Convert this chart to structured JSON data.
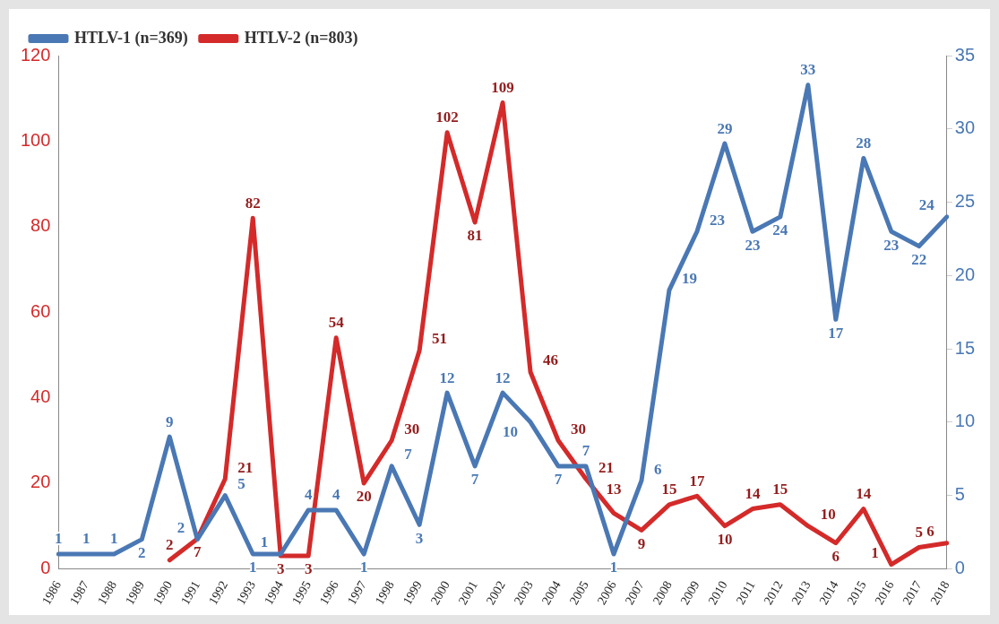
{
  "chart_data": {
    "type": "line",
    "categories": [
      "1986",
      "1987",
      "1988",
      "1989",
      "1990",
      "1991",
      "1992",
      "1993",
      "1994",
      "1995",
      "1996",
      "1997",
      "1998",
      "1999",
      "2000",
      "2001",
      "2002",
      "2003",
      "2004",
      "2005",
      "2006",
      "2007",
      "2008",
      "2009",
      "2010",
      "2011",
      "2012",
      "2013",
      "2014",
      "2015",
      "2016",
      "2017",
      "2018"
    ],
    "series": [
      {
        "name": "HTLV-1 (n=369)",
        "color": "#4a78b4",
        "axis": "y2",
        "values": [
          1,
          1,
          1,
          2,
          9,
          2,
          5,
          1,
          1,
          4,
          4,
          1,
          7,
          3,
          12,
          7,
          12,
          10,
          7,
          7,
          1,
          6,
          19,
          23,
          29,
          23,
          24,
          33,
          17,
          28,
          23,
          22,
          24
        ]
      },
      {
        "name": "HTLV-2 (n=803)",
        "color": "#d42a2a",
        "values": [
          null,
          null,
          null,
          null,
          2,
          7,
          21,
          82,
          3,
          3,
          54,
          20,
          30,
          51,
          102,
          81,
          109,
          46,
          30,
          21,
          13,
          9,
          15,
          17,
          10,
          14,
          15,
          10,
          6,
          14,
          1,
          5,
          6
        ]
      }
    ],
    "ylim": [
      0,
      120
    ],
    "yticks": [
      0,
      20,
      40,
      60,
      80,
      100,
      120
    ],
    "y2lim": [
      0,
      35
    ],
    "y2ticks": [
      0,
      5,
      10,
      15,
      20,
      25,
      30,
      35
    ],
    "data_labels": true,
    "legend": "top left",
    "grid": false,
    "marker": "none",
    "line_style": "solid"
  }
}
